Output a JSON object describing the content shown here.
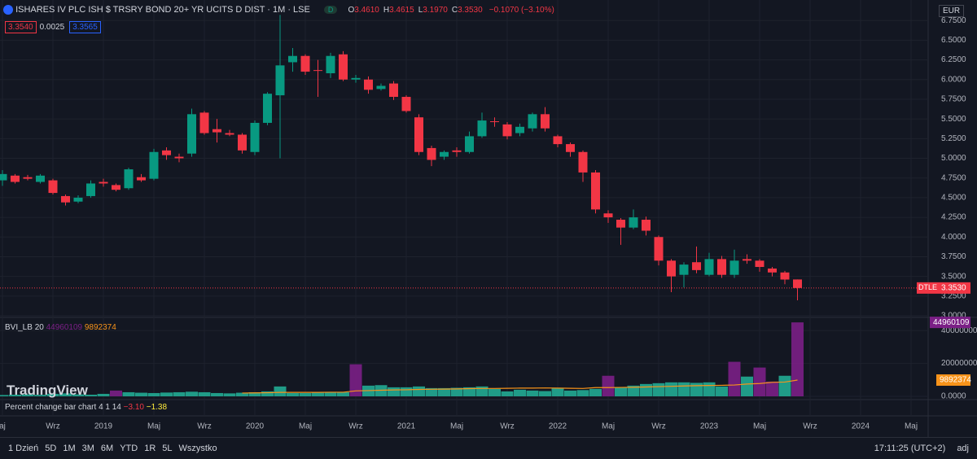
{
  "header": {
    "title": "ISHARES IV PLC ISH $ TRSRY BOND 20+ YR UCITS D DIST · 1M · LSE",
    "badge": "D",
    "ohlc": [
      {
        "label": "O",
        "value": "3.4610"
      },
      {
        "label": "H",
        "value": "3.4615"
      },
      {
        "label": "L",
        "value": "3.1970"
      },
      {
        "label": "C",
        "value": "3.3530"
      }
    ],
    "change": "−0.1070 (−3.10%)",
    "bid": "3.3540",
    "spread": "0.0025",
    "ask": "3.3565",
    "currency": "EUR",
    "logo": "TradingView"
  },
  "chart_data": {
    "type": "candlestick",
    "up_color": "#089981",
    "down_color": "#f23645",
    "open": [
      4.72,
      4.78,
      4.76,
      4.7,
      4.72,
      4.52,
      4.45,
      4.52,
      4.7,
      4.66,
      4.62,
      4.76,
      4.74,
      5.1,
      5.02,
      5.06,
      5.58,
      5.37,
      5.32,
      5.3,
      5.08,
      5.45,
      5.8,
      6.22,
      6.3,
      6.12,
      6.08,
      6.32,
      6.0,
      6.0,
      5.88,
      5.95,
      5.78,
      5.52,
      5.13,
      5.02,
      5.1,
      5.08,
      5.28,
      5.47,
      5.43,
      5.32,
      5.38,
      5.56,
      5.28,
      5.18,
      5.08,
      4.82,
      4.3,
      4.22,
      4.12,
      4.22,
      4.0,
      3.7,
      3.52,
      3.68,
      3.52,
      3.72,
      3.52,
      3.72,
      3.7,
      3.6,
      3.55,
      3.461
    ],
    "high": [
      4.85,
      4.8,
      4.79,
      4.8,
      4.74,
      4.54,
      4.53,
      4.72,
      4.74,
      4.68,
      4.88,
      4.8,
      5.12,
      5.14,
      5.06,
      5.63,
      5.6,
      5.5,
      5.36,
      5.32,
      5.48,
      5.84,
      6.82,
      6.4,
      6.32,
      6.25,
      6.34,
      6.36,
      6.06,
      6.04,
      5.95,
      5.98,
      5.8,
      5.56,
      5.16,
      5.1,
      5.14,
      5.34,
      5.58,
      5.52,
      5.46,
      5.44,
      5.58,
      5.65,
      5.3,
      5.2,
      5.1,
      4.85,
      4.34,
      4.24,
      4.35,
      4.26,
      4.02,
      3.72,
      3.68,
      3.88,
      3.8,
      3.76,
      3.84,
      3.78,
      3.72,
      3.62,
      3.57,
      3.4615
    ],
    "low": [
      4.65,
      4.68,
      4.72,
      4.68,
      4.54,
      4.4,
      4.43,
      4.5,
      4.64,
      4.58,
      4.6,
      4.7,
      4.72,
      4.98,
      4.95,
      5.02,
      5.3,
      5.2,
      5.28,
      5.06,
      5.04,
      5.42,
      5.0,
      6.1,
      6.06,
      5.78,
      6.02,
      5.98,
      5.96,
      5.82,
      5.86,
      5.74,
      5.58,
      5.04,
      4.9,
      4.98,
      5.02,
      5.06,
      5.26,
      5.4,
      5.24,
      5.28,
      5.34,
      5.34,
      5.14,
      5.02,
      4.7,
      4.3,
      4.18,
      3.9,
      4.1,
      4.02,
      3.64,
      3.3,
      3.36,
      3.54,
      3.5,
      3.48,
      3.48,
      3.66,
      3.56,
      3.5,
      3.4,
      3.197
    ],
    "close": [
      4.8,
      4.7,
      4.74,
      4.78,
      4.56,
      4.44,
      4.5,
      4.68,
      4.68,
      4.6,
      4.86,
      4.72,
      5.08,
      5.04,
      5.0,
      5.56,
      5.32,
      5.33,
      5.3,
      5.1,
      5.45,
      5.82,
      6.18,
      6.3,
      6.1,
      6.11,
      6.3,
      6.0,
      6.02,
      5.87,
      5.92,
      5.78,
      5.6,
      5.08,
      4.98,
      5.08,
      5.08,
      5.28,
      5.48,
      5.46,
      5.28,
      5.4,
      5.56,
      5.38,
      5.18,
      5.08,
      4.82,
      4.35,
      4.25,
      4.12,
      4.25,
      4.08,
      3.7,
      3.5,
      3.65,
      3.58,
      3.72,
      3.52,
      3.7,
      3.7,
      3.62,
      3.55,
      3.46,
      3.353
    ],
    "ylim": [
      3,
      7
    ],
    "yticks": [
      {
        "value": 3,
        "label": "3.0000"
      },
      {
        "value": 3.25,
        "label": "3.2500"
      },
      {
        "value": 3.5,
        "label": "3.5000"
      },
      {
        "value": 3.75,
        "label": "3.7500"
      },
      {
        "value": 4,
        "label": "4.0000"
      },
      {
        "value": 4.25,
        "label": "4.2500"
      },
      {
        "value": 4.5,
        "label": "4.5000"
      },
      {
        "value": 4.75,
        "label": "4.7500"
      },
      {
        "value": 5,
        "label": "5.0000"
      },
      {
        "value": 5.25,
        "label": "5.2500"
      },
      {
        "value": 5.5,
        "label": "5.5000"
      },
      {
        "value": 5.75,
        "label": "5.7500"
      },
      {
        "value": 6,
        "label": "6.0000"
      },
      {
        "value": 6.25,
        "label": "6.2500"
      },
      {
        "value": 6.5,
        "label": "6.5000"
      },
      {
        "value": 6.75,
        "label": "6.7500"
      }
    ],
    "xtick_labels": [
      "aj",
      "Wrz",
      "2019",
      "Maj",
      "Wrz",
      "2020",
      "Maj",
      "Wrz",
      "2021",
      "Maj",
      "Wrz",
      "2022",
      "Maj",
      "Wrz",
      "2023",
      "Maj",
      "Wrz",
      "2024",
      "Maj"
    ],
    "last_price": {
      "name": "DTLE",
      "value": 3.353,
      "label": "3.3530",
      "color": "#f23645"
    },
    "volume": {
      "name": "BVI_LB 20",
      "ylim": [
        0,
        47000000
      ],
      "yticks": [
        {
          "value": 0,
          "label": "0.0000"
        },
        20000000,
        40000000
      ],
      "values": [
        800000,
        1000000,
        1200000,
        900000,
        1500000,
        1800000,
        1200000,
        1000000,
        1500000,
        3500000,
        2500000,
        2200000,
        2000000,
        2300000,
        2500000,
        2800000,
        2500000,
        2000000,
        1800000,
        2200000,
        2500000,
        3000000,
        6000000,
        2000000,
        2000000,
        2200000,
        2500000,
        2500000,
        19500000,
        6500000,
        6800000,
        5500000,
        5500000,
        6000000,
        5000000,
        5000000,
        5200000,
        5500000,
        6000000,
        4500000,
        3000000,
        4000000,
        3500000,
        3200000,
        5000000,
        3500000,
        3800000,
        4500000,
        12500000,
        5500000,
        6500000,
        7500000,
        8000000,
        8500000,
        8500000,
        8200000,
        8500000,
        6000000,
        21000000,
        12000000,
        17500000,
        9000000,
        12500000,
        44960109
      ],
      "colors": [
        "#22ab94",
        "#22ab94",
        "#22ab94",
        "#22ab94",
        "#22ab94",
        "#22ab94",
        "#22ab94",
        "#22ab94",
        "#22ab94",
        "#7b1f86",
        "#22ab94",
        "#22ab94",
        "#22ab94",
        "#22ab94",
        "#22ab94",
        "#22ab94",
        "#22ab94",
        "#22ab94",
        "#22ab94",
        "#22ab94",
        "#22ab94",
        "#22ab94",
        "#22ab94",
        "#22ab94",
        "#22ab94",
        "#22ab94",
        "#22ab94",
        "#22ab94",
        "#7b1f86",
        "#22ab94",
        "#22ab94",
        "#22ab94",
        "#22ab94",
        "#22ab94",
        "#22ab94",
        "#22ab94",
        "#22ab94",
        "#22ab94",
        "#22ab94",
        "#22ab94",
        "#22ab94",
        "#22ab94",
        "#22ab94",
        "#22ab94",
        "#22ab94",
        "#22ab94",
        "#22ab94",
        "#22ab94",
        "#7b1f86",
        "#22ab94",
        "#22ab94",
        "#22ab94",
        "#22ab94",
        "#22ab94",
        "#22ab94",
        "#22ab94",
        "#22ab94",
        "#22ab94",
        "#7b1f86",
        "#22ab94",
        "#7b1f86",
        "#7b1f86",
        "#22ab94",
        "#7b1f86"
      ],
      "ma": {
        "color": "#f7931a",
        "values": [
          null,
          null,
          null,
          null,
          null,
          null,
          null,
          null,
          null,
          null,
          null,
          null,
          null,
          null,
          null,
          null,
          null,
          null,
          null,
          2000000,
          2100000,
          2200000,
          2400000,
          2400000,
          2400000,
          2400000,
          2500000,
          2500000,
          3300000,
          3500000,
          3700000,
          3900000,
          4000000,
          4200000,
          4300000,
          4400000,
          4500000,
          4700000,
          4800000,
          4800000,
          4900000,
          5000000,
          5000000,
          5100000,
          5000000,
          4900000,
          4800000,
          5300000,
          5300000,
          5400000,
          5500000,
          5700000,
          5900000,
          6100000,
          6300000,
          6500000,
          6600000,
          6700000,
          6900000,
          7500000,
          7800000,
          8500000,
          8700000,
          9892374
        ]
      }
    },
    "percent_pane": {
      "name": "Percent change bar chart 4 1 14",
      "value1": "−3.10",
      "value2": "−1.38"
    }
  },
  "toolbar": {
    "ranges": [
      "1 Dzień",
      "5D",
      "1M",
      "3M",
      "6M",
      "YTD",
      "1R",
      "5L",
      "Wszystko"
    ],
    "clock": "17:11:25 (UTC+2)",
    "adj": "adj"
  }
}
